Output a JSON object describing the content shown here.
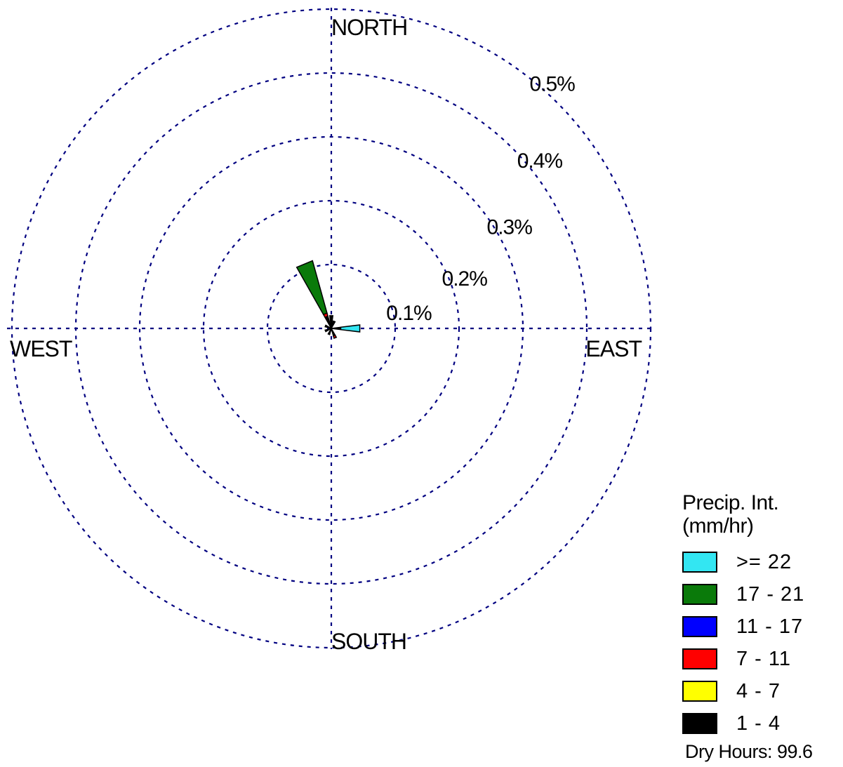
{
  "chart_data": {
    "type": "wind-rose",
    "rings": [
      {
        "value": 0.1,
        "label": "0.1%"
      },
      {
        "value": 0.2,
        "label": "0.2%"
      },
      {
        "value": 0.3,
        "label": "0.3%"
      },
      {
        "value": 0.4,
        "label": "0.4%"
      },
      {
        "value": 0.5,
        "label": "0.5%"
      }
    ],
    "directions": {
      "north": "NORTH",
      "south": "SOUTH",
      "east": "EAST",
      "west": "WEST"
    },
    "legend_title_line1": "Precip. Int.",
    "legend_title_line2": "(mm/hr)",
    "bins": [
      {
        "label": ">= 22",
        "color": "#33E6F2"
      },
      {
        "label": "17 - 21",
        "color": "#0A7A0A"
      },
      {
        "label": "11 - 17",
        "color": "#0000FF"
      },
      {
        "label": "7 - 11",
        "color": "#FF0000"
      },
      {
        "label": "4 - 7",
        "color": "#FFFF00"
      },
      {
        "label": "1 - 4",
        "color": "#000000"
      }
    ],
    "petals": [
      {
        "direction_deg": 337.5,
        "segments": [
          {
            "bin": "1 - 4",
            "value": 0.02
          },
          {
            "bin": "7 - 11",
            "value": 0.005
          },
          {
            "bin": "17 - 21",
            "value": 0.085
          }
        ]
      },
      {
        "direction_deg": 90,
        "segments": [
          {
            "bin": "1 - 4",
            "value": 0.015
          },
          {
            "bin": ">= 22",
            "value": 0.03
          }
        ]
      },
      {
        "direction_deg": 0,
        "segments": [
          {
            "bin": "1 - 4",
            "value": 0.02
          }
        ]
      },
      {
        "direction_deg": 22.5,
        "segments": [
          {
            "bin": "1 - 4",
            "value": 0.012
          }
        ]
      },
      {
        "direction_deg": 157.5,
        "segments": [
          {
            "bin": "1 - 4",
            "value": 0.012
          },
          {
            "bin": "7 - 11",
            "value": 0.004
          }
        ]
      },
      {
        "direction_deg": 202.5,
        "segments": [
          {
            "bin": "1 - 4",
            "value": 0.01
          }
        ]
      },
      {
        "direction_deg": 247.5,
        "segments": [
          {
            "bin": "1 - 4",
            "value": 0.01
          }
        ]
      },
      {
        "direction_deg": 292.5,
        "segments": [
          {
            "bin": "1 - 4",
            "value": 0.01
          }
        ]
      }
    ],
    "dry_hours_label": "Dry Hours: 99.6"
  }
}
